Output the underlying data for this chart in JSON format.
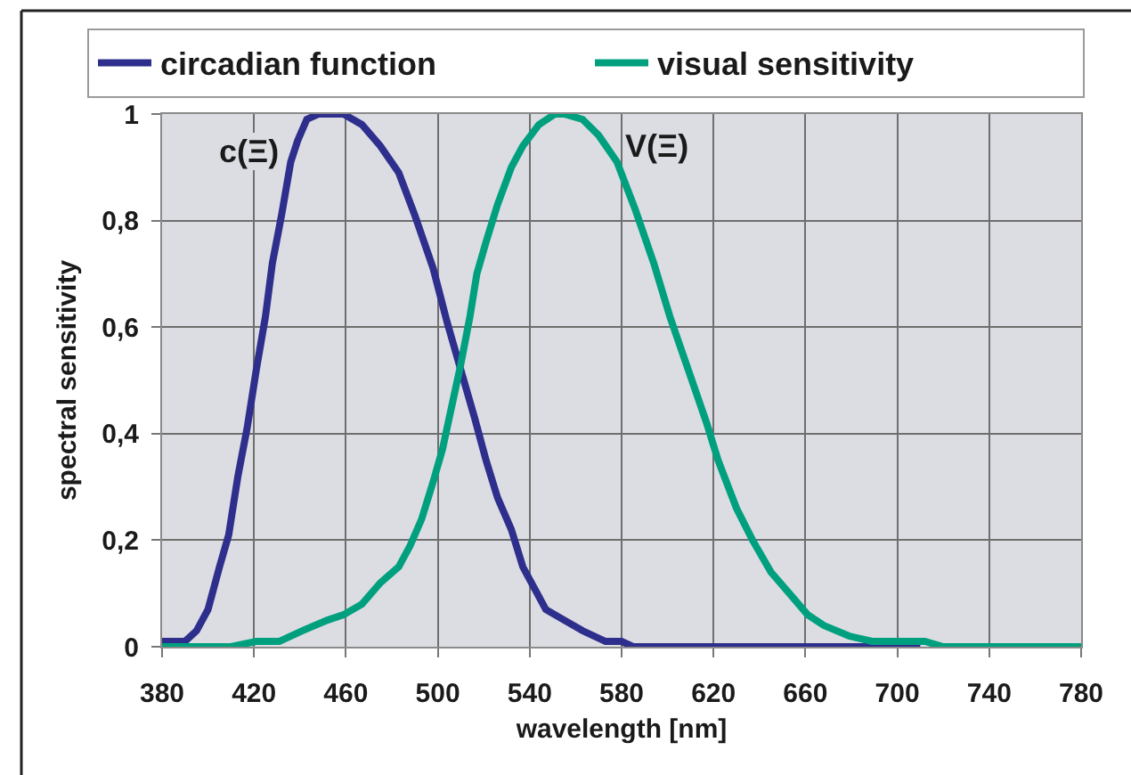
{
  "chart_data": {
    "type": "line",
    "xlabel": "wavelength [nm]",
    "ylabel": "spectral sensitivity",
    "xlim": [
      380,
      780
    ],
    "xticks": [
      380,
      420,
      460,
      500,
      540,
      580,
      620,
      660,
      700,
      740,
      780
    ],
    "ylim": [
      0,
      1
    ],
    "yticks": [
      0,
      {
        "value": 0.2,
        "label": "0,2"
      },
      {
        "value": 0.4,
        "label": "0,4"
      },
      {
        "value": 0.6,
        "label": "0,6"
      },
      {
        "value": 0.8,
        "label": "0,8"
      },
      1
    ],
    "grid": true,
    "legend": "top",
    "marker": "none",
    "line_style": "solid",
    "annotations": [
      "c(Ξ)",
      "V(Ξ)"
    ],
    "series": [
      {
        "name": "circadian function",
        "color": "#2e2f8c",
        "x": [
          380,
          390,
          395,
          400,
          405,
          409,
          413,
          417,
          421,
          425,
          428,
          432,
          436,
          439,
          443,
          448,
          452,
          459,
          467,
          475,
          483,
          490,
          498,
          504,
          510,
          516,
          521,
          526,
          532,
          537,
          542,
          547,
          555,
          563,
          573,
          580,
          585,
          710
        ],
        "values": [
          0.01,
          0.01,
          0.03,
          0.07,
          0.15,
          0.21,
          0.32,
          0.41,
          0.52,
          0.62,
          0.72,
          0.81,
          0.91,
          0.95,
          0.99,
          1.0,
          1.0,
          1.0,
          0.98,
          0.94,
          0.89,
          0.81,
          0.71,
          0.61,
          0.52,
          0.43,
          0.35,
          0.28,
          0.22,
          0.15,
          0.11,
          0.07,
          0.05,
          0.03,
          0.01,
          0.01,
          0,
          0
        ]
      },
      {
        "name": "visual sensitivity",
        "color": "#00a07f",
        "x": [
          380,
          410,
          421,
          431,
          441,
          452,
          459,
          467,
          475,
          483,
          488,
          493,
          498,
          502,
          506,
          510,
          514,
          517,
          521,
          526,
          532,
          537,
          544,
          551,
          555,
          563,
          570,
          578,
          586,
          594,
          601,
          609,
          617,
          622,
          630,
          637,
          645,
          653,
          661,
          668,
          679,
          689,
          699,
          712,
          720,
          780
        ],
        "values": [
          0,
          0,
          0.01,
          0.01,
          0.03,
          0.05,
          0.06,
          0.08,
          0.12,
          0.15,
          0.19,
          0.24,
          0.31,
          0.37,
          0.45,
          0.53,
          0.62,
          0.7,
          0.76,
          0.83,
          0.9,
          0.94,
          0.98,
          1.0,
          1.0,
          0.99,
          0.96,
          0.91,
          0.82,
          0.72,
          0.62,
          0.52,
          0.42,
          0.35,
          0.26,
          0.2,
          0.14,
          0.1,
          0.06,
          0.04,
          0.02,
          0.01,
          0.01,
          0.01,
          0,
          0
        ]
      }
    ]
  }
}
